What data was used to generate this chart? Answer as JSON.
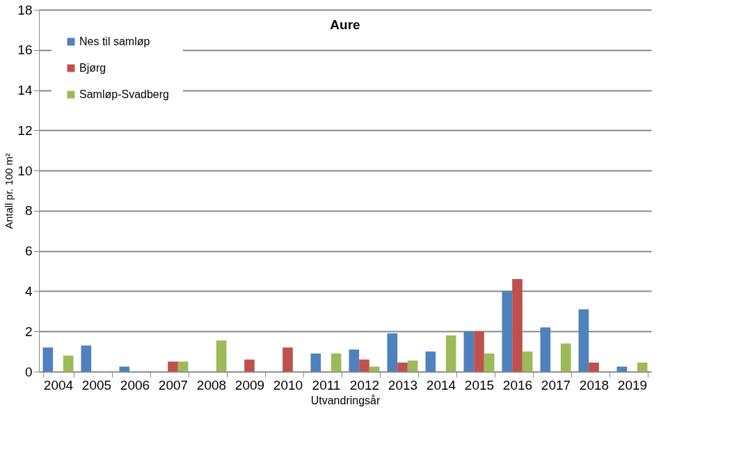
{
  "chart_data": {
    "type": "bar",
    "title": "Aure",
    "xlabel": "Utvandringsår",
    "ylabel": "Antall pr. 100 m²",
    "categories": [
      "2004",
      "2005",
      "2006",
      "2007",
      "2008",
      "2009",
      "2010",
      "2011",
      "2012",
      "2013",
      "2014",
      "2015",
      "2016",
      "2017",
      "2018",
      "2019"
    ],
    "series": [
      {
        "name": "Nes til samløp",
        "color": "#4f81bd",
        "values": [
          1.2,
          1.3,
          0.25,
          null,
          null,
          null,
          null,
          0.9,
          1.1,
          1.9,
          1.0,
          2.0,
          4.0,
          2.2,
          3.1,
          0.25
        ]
      },
      {
        "name": "Bjørg",
        "color": "#c0504d",
        "values": [
          null,
          null,
          null,
          0.5,
          null,
          0.6,
          1.2,
          null,
          0.6,
          0.45,
          null,
          2.0,
          4.6,
          null,
          0.45,
          null
        ]
      },
      {
        "name": "Samløp-Svadberg",
        "color": "#9bbb59",
        "values": [
          0.8,
          null,
          null,
          0.5,
          1.55,
          null,
          null,
          0.9,
          0.25,
          0.55,
          1.8,
          0.9,
          1.0,
          1.4,
          null,
          0.45
        ]
      }
    ],
    "ylim": [
      0,
      18
    ],
    "yticks": [
      0,
      2,
      4,
      6,
      8,
      10,
      12,
      14,
      16,
      18
    ],
    "grid": "y",
    "legend": "top left"
  }
}
